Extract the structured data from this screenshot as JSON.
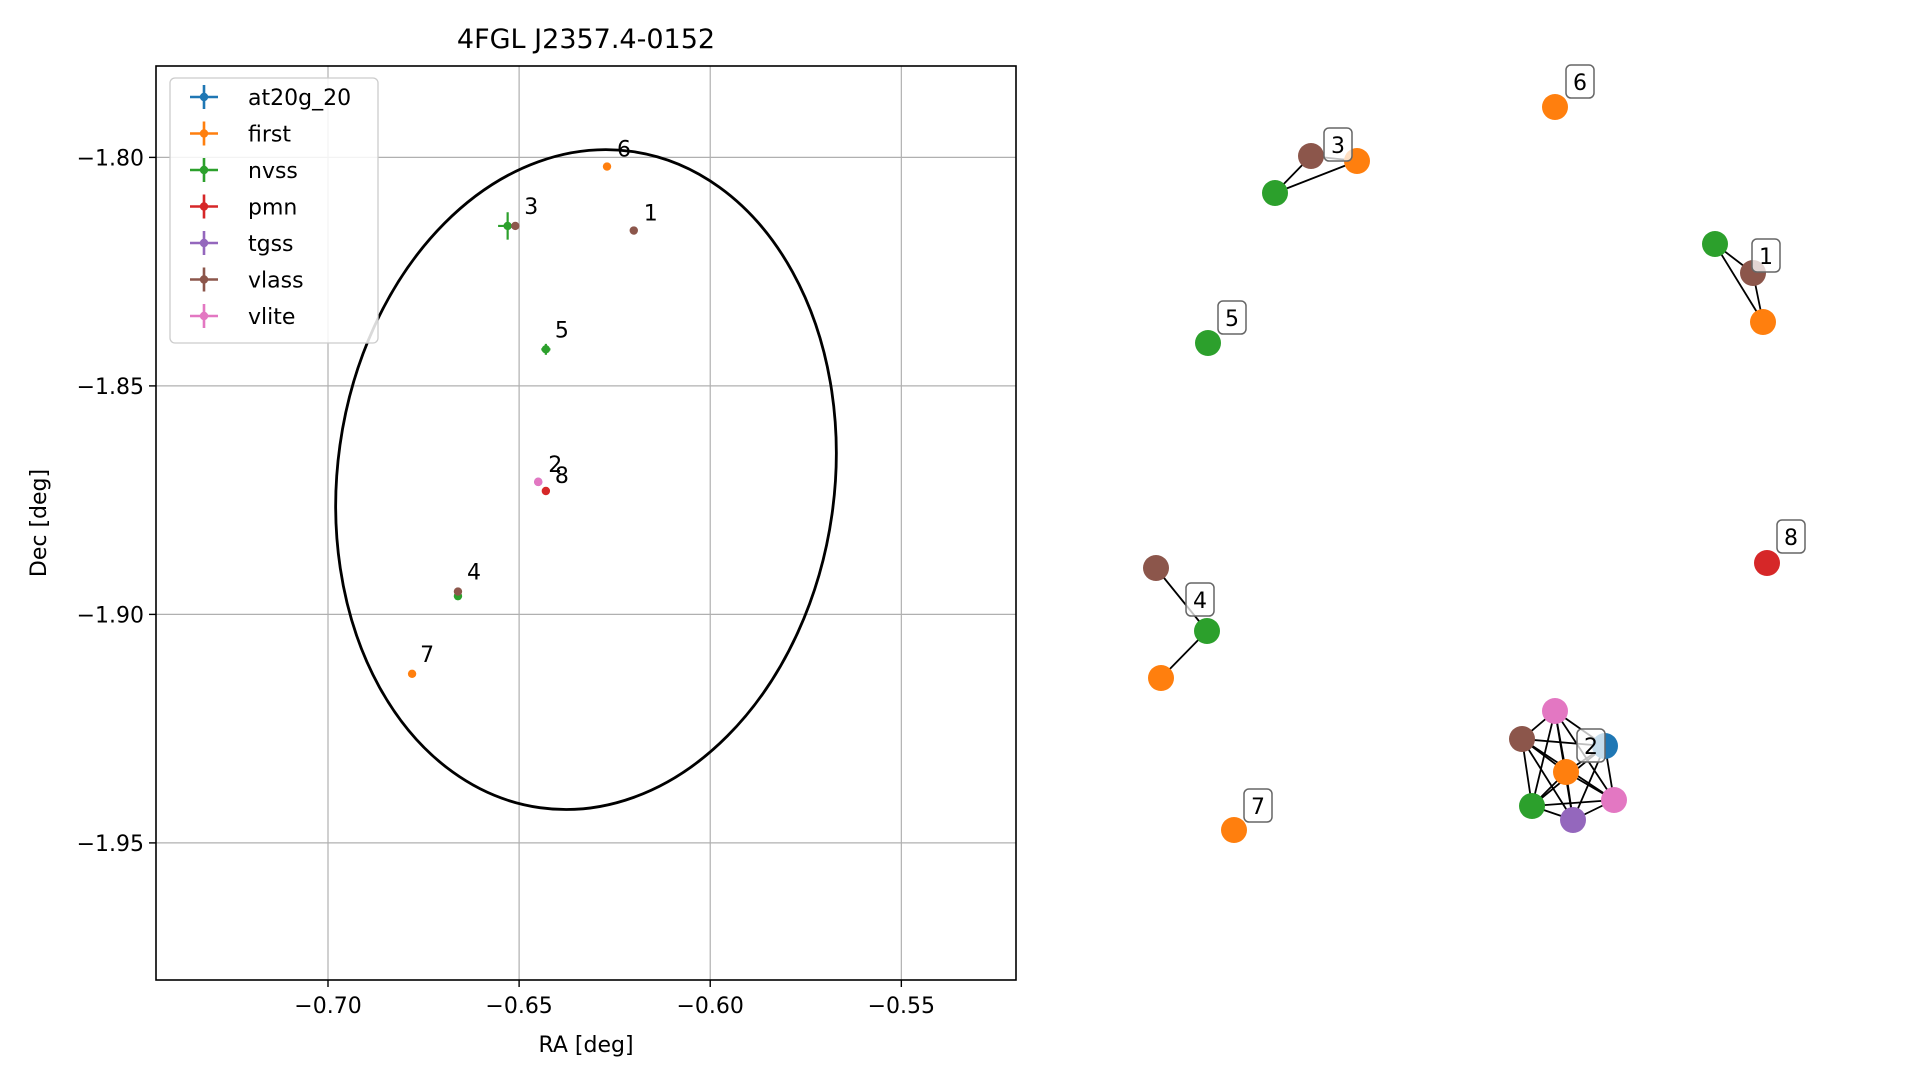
{
  "chart_data": [
    {
      "type": "scatter",
      "title": "4FGL J2357.4-0152",
      "xlabel": "RA [deg]",
      "ylabel": "Dec [deg]",
      "xlim": [
        -0.745,
        -0.52
      ],
      "ylim": [
        -1.98,
        -1.78
      ],
      "xticks": [
        -0.7,
        -0.65,
        -0.6,
        -0.55
      ],
      "xtick_labels": [
        "−0.70",
        "−0.65",
        "−0.60",
        "−0.55"
      ],
      "yticks": [
        -1.8,
        -1.85,
        -1.9,
        -1.95
      ],
      "ytick_labels": [
        "−1.80",
        "−1.85",
        "−1.90",
        "−1.95"
      ],
      "grid": true,
      "legend_position": "top-left",
      "ellipse": {
        "center": [
          -0.6325,
          -1.8705
        ],
        "ra_semi_axis": 0.065,
        "dec_semi_axis": 0.0725,
        "tilt_deg": 8
      },
      "series": [
        {
          "name": "at20g_20",
          "color": "#1f77b4",
          "points": []
        },
        {
          "name": "first",
          "color": "#ff7f0e",
          "points": [
            {
              "x": -0.627,
              "y": -1.802,
              "xerr": 0.0,
              "yerr": 0.0
            },
            {
              "x": -0.678,
              "y": -1.913,
              "xerr": 0.0,
              "yerr": 0.0
            }
          ]
        },
        {
          "name": "nvss",
          "color": "#2ca02c",
          "points": [
            {
              "x": -0.653,
              "y": -1.815,
              "xerr": 0.0025,
              "yerr": 0.003
            },
            {
              "x": -0.643,
              "y": -1.842,
              "xerr": 0.0012,
              "yerr": 0.0012
            },
            {
              "x": -0.666,
              "y": -1.896,
              "xerr": 0.0,
              "yerr": 0.0
            }
          ]
        },
        {
          "name": "pmn",
          "color": "#d62728",
          "points": [
            {
              "x": -0.643,
              "y": -1.873,
              "xerr": 0.0,
              "yerr": 0.0
            }
          ]
        },
        {
          "name": "tgss",
          "color": "#9467bd",
          "points": [
            {
              "x": -0.645,
              "y": -1.871,
              "xerr": 0.0,
              "yerr": 0.0
            }
          ]
        },
        {
          "name": "vlass",
          "color": "#8c564b",
          "points": [
            {
              "x": -0.62,
              "y": -1.816,
              "xerr": 0.0,
              "yerr": 0.0
            },
            {
              "x": -0.651,
              "y": -1.815,
              "xerr": 0.0,
              "yerr": 0.0
            },
            {
              "x": -0.666,
              "y": -1.895,
              "xerr": 0.0,
              "yerr": 0.0
            }
          ]
        },
        {
          "name": "vlite",
          "color": "#e377c2",
          "points": [
            {
              "x": -0.645,
              "y": -1.871,
              "xerr": 0.0,
              "yerr": 0.0
            }
          ]
        }
      ],
      "annotations": [
        {
          "text": "1",
          "x": -0.62,
          "y": -1.816
        },
        {
          "text": "2",
          "x": -0.645,
          "y": -1.871
        },
        {
          "text": "3",
          "x": -0.651,
          "y": -1.815
        },
        {
          "text": "4",
          "x": -0.666,
          "y": -1.895
        },
        {
          "text": "5",
          "x": -0.643,
          "y": -1.842
        },
        {
          "text": "6",
          "x": -0.627,
          "y": -1.802
        },
        {
          "text": "7",
          "x": -0.678,
          "y": -1.913
        },
        {
          "text": "8",
          "x": -0.643,
          "y": -1.873
        }
      ]
    },
    {
      "type": "network",
      "title": "",
      "node_colors": {
        "at20g_20": "#1f77b4",
        "first": "#ff7f0e",
        "nvss": "#2ca02c",
        "pmn": "#d62728",
        "tgss": "#9467bd",
        "vlass": "#8c564b",
        "vlite": "#e377c2"
      },
      "groups": [
        {
          "label": "1",
          "nodes": [
            "nvss",
            "vlass",
            "first"
          ]
        },
        {
          "label": "2",
          "nodes": [
            "vlite",
            "vlass",
            "at20g_20",
            "first",
            "nvss",
            "tgss",
            "vlite"
          ]
        },
        {
          "label": "3",
          "nodes": [
            "vlass",
            "first",
            "nvss"
          ]
        },
        {
          "label": "4",
          "nodes": [
            "vlass",
            "nvss",
            "first"
          ]
        },
        {
          "label": "5",
          "nodes": [
            "nvss"
          ]
        },
        {
          "label": "6",
          "nodes": [
            "first"
          ]
        },
        {
          "label": "7",
          "nodes": [
            "first"
          ]
        },
        {
          "label": "8",
          "nodes": [
            "pmn"
          ]
        }
      ]
    }
  ]
}
